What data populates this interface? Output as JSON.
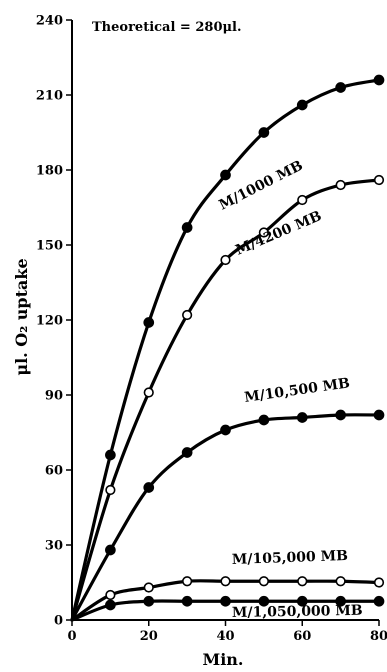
{
  "chart_data": {
    "type": "line",
    "xlabel": "Min.",
    "ylabel": "μl. O₂ uptake",
    "annotation": "Theoretical = 280μl.",
    "xlim": [
      0,
      80
    ],
    "ylim": [
      0,
      240
    ],
    "x_ticks": [
      0,
      20,
      40,
      60,
      80
    ],
    "y_ticks": [
      0,
      30,
      60,
      90,
      120,
      150,
      180,
      210,
      240
    ],
    "series": [
      {
        "name": "M/1000 MB",
        "marker": "filled",
        "x": [
          0,
          10,
          20,
          30,
          40,
          50,
          60,
          70,
          80
        ],
        "y": [
          0,
          66,
          119,
          157,
          178,
          195,
          206,
          213,
          216
        ]
      },
      {
        "name": "M/4200 MB",
        "marker": "open",
        "x": [
          0,
          10,
          20,
          30,
          40,
          50,
          60,
          70,
          80
        ],
        "y": [
          0,
          52,
          91,
          122,
          144,
          155,
          168,
          174,
          176
        ]
      },
      {
        "name": "M/10,500 MB",
        "marker": "filled",
        "x": [
          0,
          10,
          20,
          30,
          40,
          50,
          60,
          70,
          80
        ],
        "y": [
          0,
          28,
          53,
          67,
          76,
          80,
          81,
          82,
          82
        ]
      },
      {
        "name": "M/105,000 MB",
        "marker": "open",
        "x": [
          0,
          10,
          20,
          30,
          40,
          50,
          60,
          70,
          80
        ],
        "y": [
          0,
          10,
          13,
          15.5,
          15.5,
          15.5,
          15.5,
          15.5,
          15
        ]
      },
      {
        "name": "M/1,050,000 MB",
        "marker": "filled",
        "x": [
          0,
          10,
          20,
          30,
          40,
          50,
          60,
          70,
          80
        ],
        "y": [
          0,
          6,
          7.5,
          7.5,
          7.5,
          7.5,
          7.5,
          7.5,
          7.5
        ]
      }
    ]
  }
}
